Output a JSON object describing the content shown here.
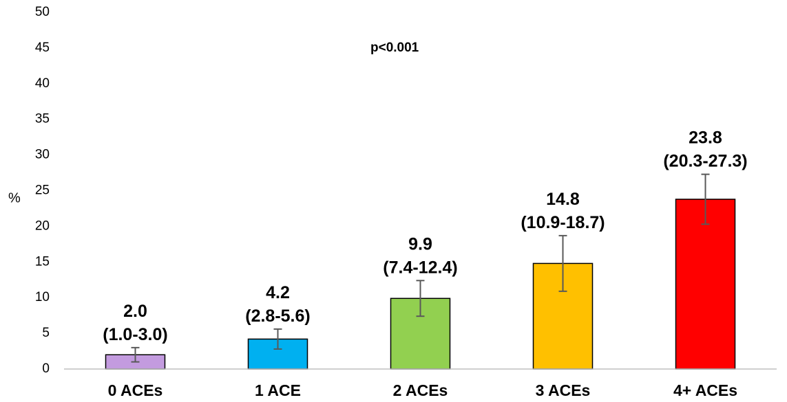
{
  "chart_data": {
    "type": "bar",
    "title": "",
    "xlabel": "",
    "ylabel": "%",
    "ylim": [
      0,
      50
    ],
    "yticks": [
      0,
      5,
      10,
      15,
      20,
      25,
      30,
      35,
      40,
      45,
      50
    ],
    "annotation": "p<0.001",
    "grid": false,
    "legend": "none",
    "categories": [
      "0 ACEs",
      "1 ACE",
      "2 ACEs",
      "3 ACEs",
      "4+ ACEs"
    ],
    "values": [
      2.0,
      4.2,
      9.9,
      14.8,
      23.8
    ],
    "ci_low": [
      1.0,
      2.8,
      7.4,
      10.9,
      20.3
    ],
    "ci_high": [
      3.0,
      5.6,
      12.4,
      18.7,
      27.3
    ],
    "value_labels": [
      "2.0",
      "4.2",
      "9.9",
      "14.8",
      "23.8"
    ],
    "ci_labels": [
      "(1.0-3.0)",
      "(2.8-5.6)",
      "(7.4-12.4)",
      "(10.9-18.7)",
      "(20.3-27.3)"
    ],
    "colors": [
      "#c39bdf",
      "#00b0f0",
      "#92d050",
      "#ffc000",
      "#ff0000"
    ],
    "error_bar_color": "#595959",
    "axis_color": "#bfbfbf"
  }
}
